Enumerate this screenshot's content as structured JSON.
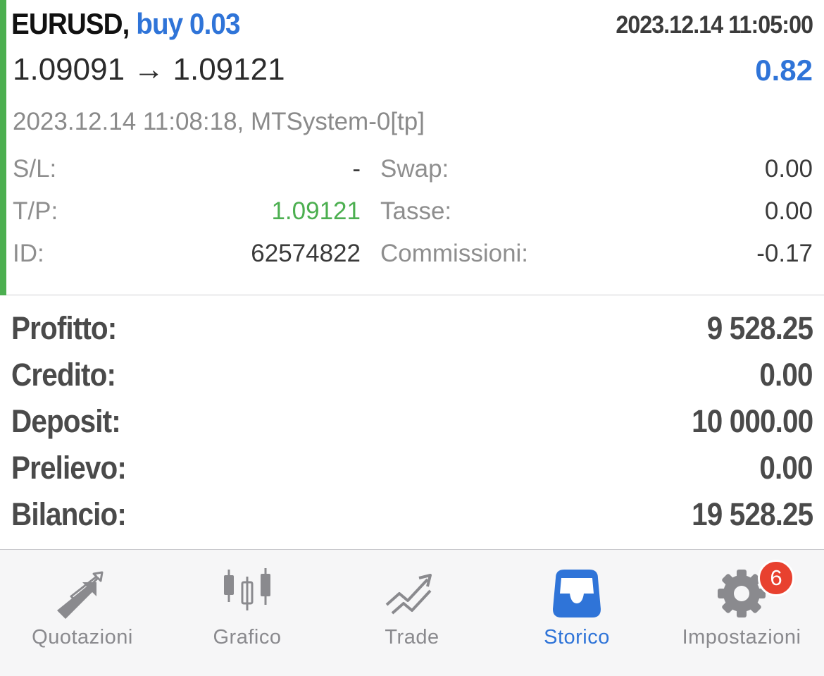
{
  "trade": {
    "symbol": "EURUSD,",
    "side": "buy 0.03",
    "open_time": "2023.12.14 11:05:00",
    "price_move": "1.09091 → 1.09121",
    "profit": "0.82",
    "close_info": "2023.12.14 11:08:18, MTSystem-0[tp]",
    "sl_label": "S/L:",
    "sl_value": "-",
    "tp_label": "T/P:",
    "tp_value": "1.09121",
    "id_label": "ID:",
    "id_value": "62574822",
    "swap_label": "Swap:",
    "swap_value": "0.00",
    "tax_label": "Tasse:",
    "tax_value": "0.00",
    "commission_label": "Commissioni:",
    "commission_value": "-0.17"
  },
  "summary": {
    "profit_label": "Profitto:",
    "profit_value": "9 528.25",
    "credit_label": "Credito:",
    "credit_value": "0.00",
    "deposit_label": "Deposit:",
    "deposit_value": "10 000.00",
    "withdrawal_label": "Prelievo:",
    "withdrawal_value": "0.00",
    "balance_label": "Bilancio:",
    "balance_value": "19 528.25"
  },
  "tabs": [
    {
      "label": "Quotazioni",
      "icon": "quotes-arrows-icon"
    },
    {
      "label": "Grafico",
      "icon": "candlestick-chart-icon"
    },
    {
      "label": "Trade",
      "icon": "trade-trend-icon"
    },
    {
      "label": "Storico",
      "icon": "history-inbox-icon"
    },
    {
      "label": "Impostazioni",
      "icon": "gear-icon",
      "badge": "6"
    }
  ],
  "colors": {
    "accent_green": "#4caf50",
    "accent_blue": "#2f74d8",
    "badge_red": "#e8412f",
    "inactive_gray": "#8a8a8e"
  }
}
